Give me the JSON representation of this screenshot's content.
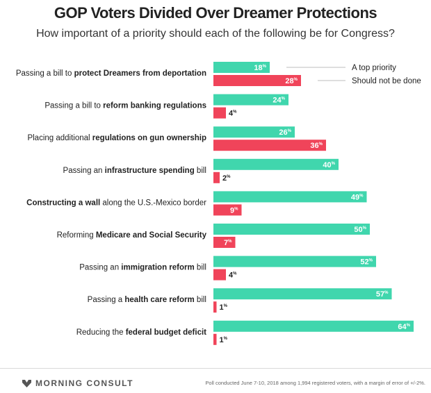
{
  "header": {
    "title": "GOP Voters Divided Over Dreamer Protections",
    "subtitle": "How important of a priority should each of the following be for Congress?"
  },
  "colors": {
    "top_priority": "#40d6ad",
    "should_not_be_done": "#f0445a"
  },
  "chart_data": {
    "type": "bar",
    "orientation": "horizontal",
    "unit": "%",
    "categories": [
      [
        {
          "text": "Passing a bill to ",
          "bold": false
        },
        {
          "text": "protect Dreamers from deportation",
          "bold": true
        }
      ],
      [
        {
          "text": "Passing a bill to ",
          "bold": false
        },
        {
          "text": "reform banking regulations",
          "bold": true
        }
      ],
      [
        {
          "text": "Placing additional ",
          "bold": false
        },
        {
          "text": "regulations on gun ownership",
          "bold": true
        }
      ],
      [
        {
          "text": "Passing an ",
          "bold": false
        },
        {
          "text": "infrastructure spending",
          "bold": true
        },
        {
          "text": " bill",
          "bold": false
        }
      ],
      [
        {
          "text": "Constructing a wall",
          "bold": true
        },
        {
          "text": " along the U.S.-Mexico border",
          "bold": false
        }
      ],
      [
        {
          "text": "Reforming ",
          "bold": false
        },
        {
          "text": "Medicare and Social Security",
          "bold": true
        }
      ],
      [
        {
          "text": "Passing an ",
          "bold": false
        },
        {
          "text": "immigration reform",
          "bold": true
        },
        {
          "text": " bill",
          "bold": false
        }
      ],
      [
        {
          "text": "Passing a ",
          "bold": false
        },
        {
          "text": "health care reform",
          "bold": true
        },
        {
          "text": " bill",
          "bold": false
        }
      ],
      [
        {
          "text": "Reducing the ",
          "bold": false
        },
        {
          "text": "federal budget deficit",
          "bold": true
        }
      ]
    ],
    "series": [
      {
        "name": "A top priority",
        "values": [
          18,
          24,
          26,
          40,
          49,
          50,
          52,
          57,
          64
        ]
      },
      {
        "name": "Should not be done",
        "values": [
          28,
          4,
          36,
          2,
          9,
          7,
          4,
          1,
          1
        ]
      }
    ],
    "legend": "top-right",
    "grid": false
  },
  "footer": {
    "brand": "MORNING CONSULT",
    "note": "Poll conducted June 7-10, 2018 among 1,994 registered voters, with a margin of error of +/-2%."
  }
}
